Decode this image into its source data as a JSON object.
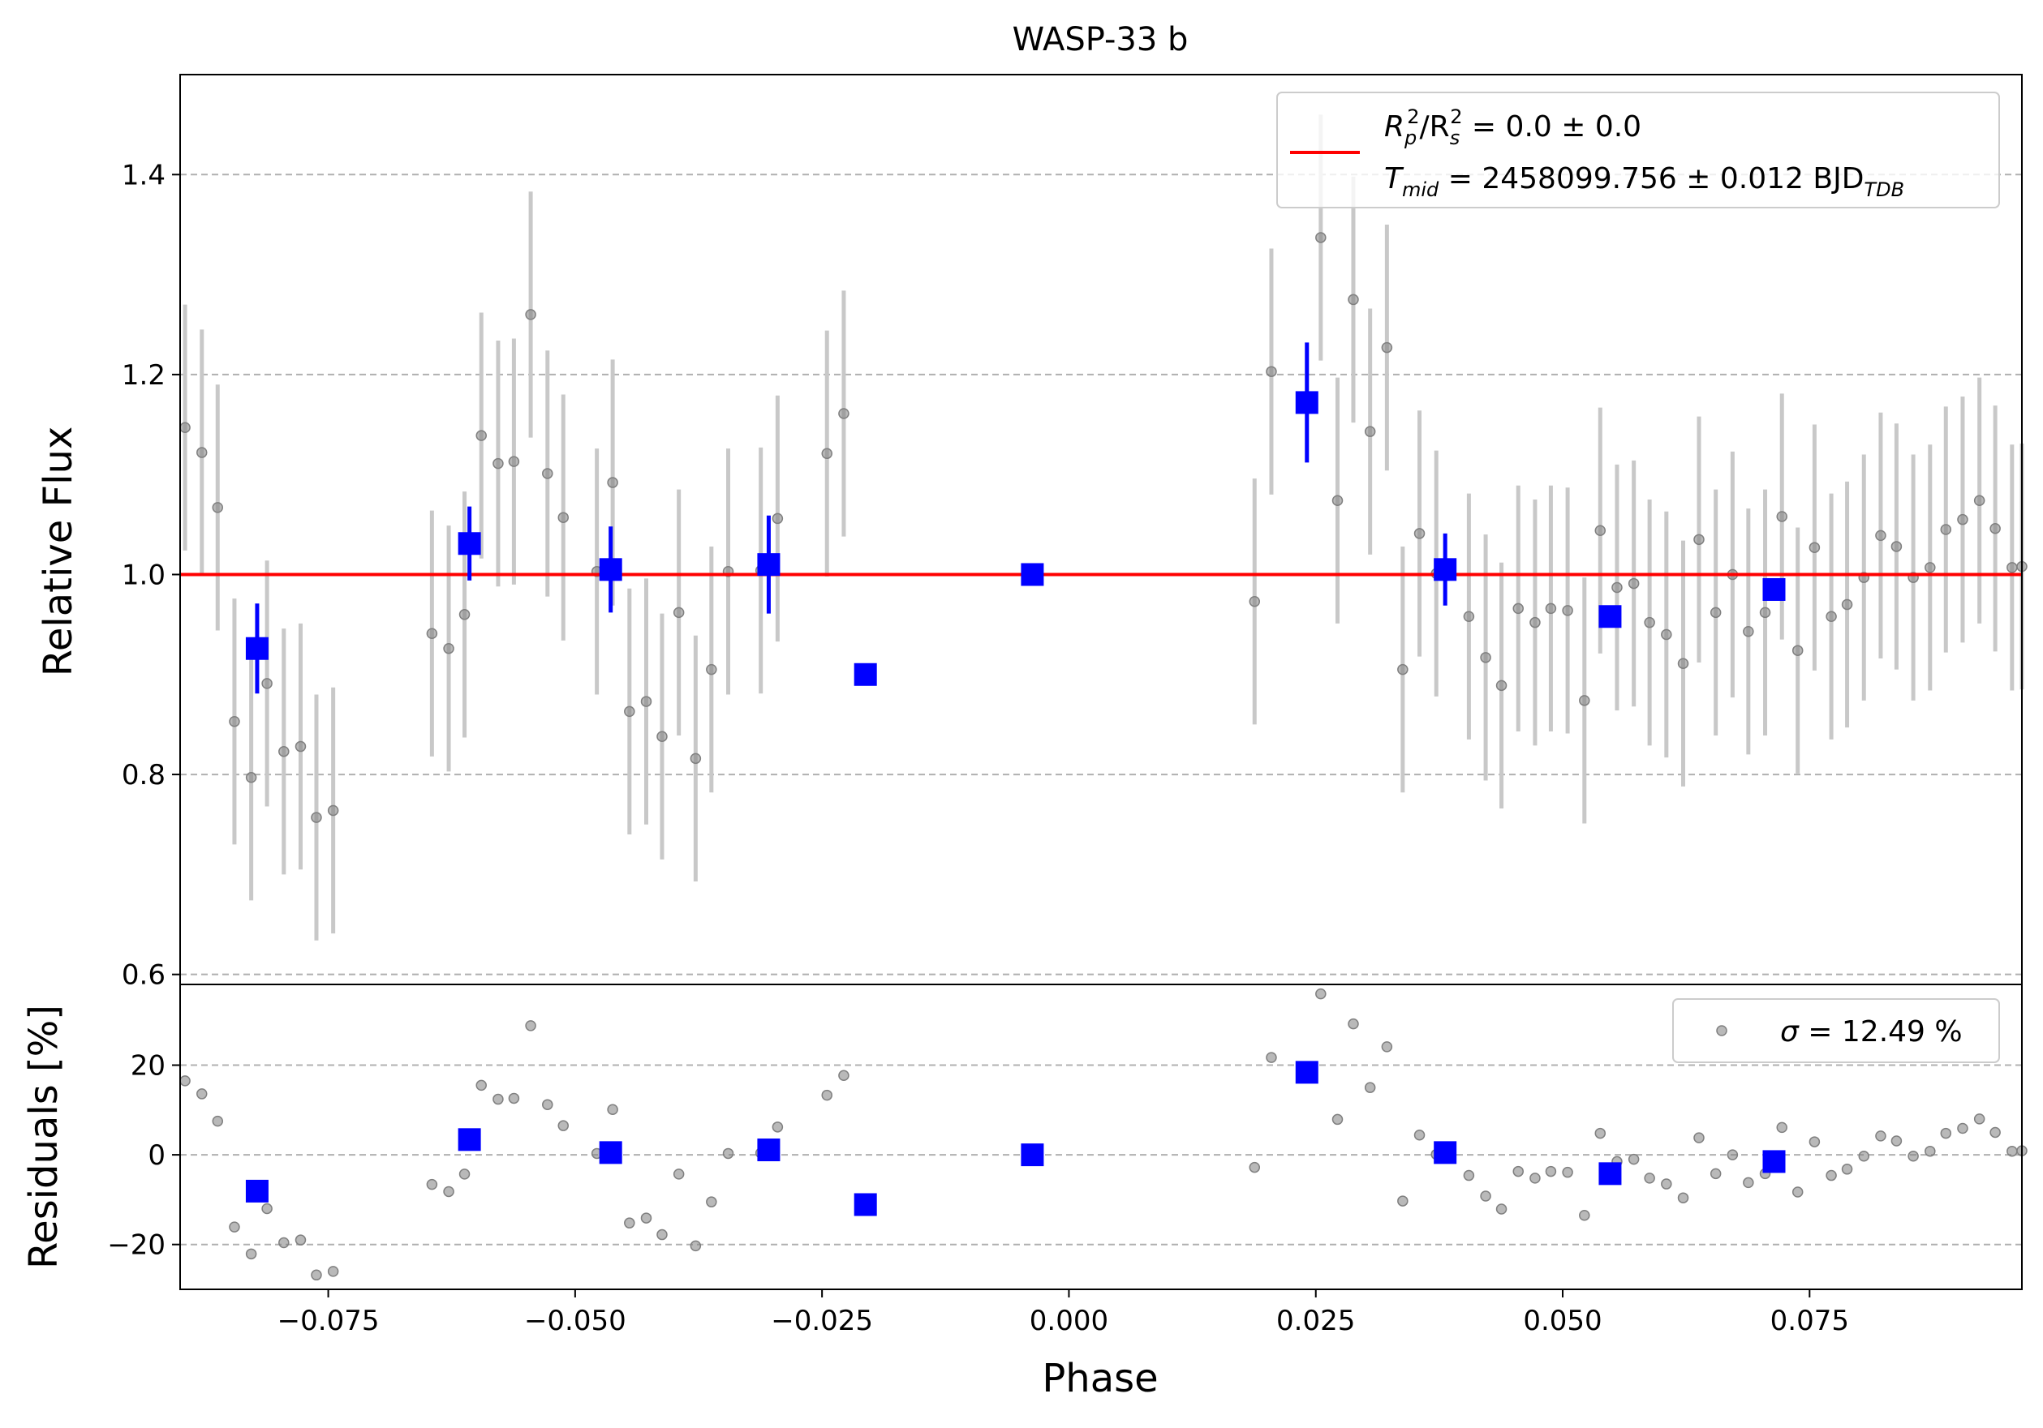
{
  "chart_data": [
    {
      "type": "scatter",
      "panel": "main",
      "title": "WASP-33 b",
      "xlabel": "",
      "ylabel": "Relative Flux",
      "xlim": [
        -0.09,
        0.0965
      ],
      "ylim": [
        0.59,
        1.5
      ],
      "yticks": [
        0.6,
        0.8,
        1.0,
        1.2,
        1.4
      ],
      "grid": "horizontal dashed",
      "legend_position": "top-right",
      "legend": {
        "model_label": "R_p^2/R_s^2 = 0.0 ± 0.0",
        "model_label_rp": "R",
        "model_label_p": "p",
        "model_label_sq1": "2",
        "model_label_rs": "/R",
        "model_label_s": "s",
        "model_label_sq2": "2",
        "model_label_value": " = 0.0 ± 0.0",
        "tmid_label": "T_mid = 2458099.756 ± 0.012 BJD_TDB",
        "tmid_T": "T",
        "tmid_sub": "mid",
        "tmid_value": " = 2458099.756 ± 0.012 BJD",
        "tmid_bjd_sub": "TDB"
      },
      "model": {
        "name": "model",
        "y": 1.0,
        "color": "#ff0000"
      },
      "colors": {
        "raw": "#808080",
        "raw_err": "#c8c8c8",
        "binned": "#0000ff",
        "model": "#ff0000",
        "grid": "#b0b0b0"
      },
      "series": [
        {
          "name": "raw",
          "x": [
            -0.0895,
            -0.0878,
            -0.0862,
            -0.0845,
            -0.0828,
            -0.0812,
            -0.0795,
            -0.0778,
            -0.0762,
            -0.0745,
            -0.0645,
            -0.0628,
            -0.0612,
            -0.0595,
            -0.0578,
            -0.0562,
            -0.0545,
            -0.0528,
            -0.0512,
            -0.0478,
            -0.0462,
            -0.0445,
            -0.0428,
            -0.0412,
            -0.0395,
            -0.0378,
            -0.0362,
            -0.0345,
            -0.0312,
            -0.0295,
            -0.0245,
            -0.0228,
            0.0188,
            0.0205,
            0.0255,
            0.0272,
            0.0288,
            0.0305,
            0.0322,
            0.0338,
            0.0355,
            0.0372,
            0.0405,
            0.0422,
            0.0438,
            0.0455,
            0.0472,
            0.0488,
            0.0505,
            0.0522,
            0.0538,
            0.0555,
            0.0572,
            0.0588,
            0.0605,
            0.0622,
            0.0638,
            0.0655,
            0.0672,
            0.0688,
            0.0705,
            0.0722,
            0.0738,
            0.0755,
            0.0772,
            0.0788,
            0.0805,
            0.0822,
            0.0838,
            0.0855,
            0.0872,
            0.0888,
            0.0905,
            0.0922,
            0.0938,
            0.0955,
            0.0965
          ],
          "y": [
            1.147,
            1.122,
            1.067,
            0.853,
            0.797,
            0.891,
            0.823,
            0.828,
            0.757,
            0.764,
            0.941,
            0.926,
            0.96,
            1.139,
            1.111,
            1.113,
            1.26,
            1.101,
            1.057,
            1.003,
            1.092,
            0.863,
            0.873,
            0.838,
            0.962,
            0.816,
            0.905,
            1.003,
            1.004,
            1.056,
            1.121,
            1.161,
            0.973,
            1.203,
            1.337,
            1.074,
            1.275,
            1.143,
            1.227,
            0.905,
            1.041,
            1.001,
            0.958,
            0.917,
            0.889,
            0.966,
            0.952,
            0.966,
            0.964,
            0.874,
            1.044,
            0.987,
            0.991,
            0.952,
            0.94,
            0.911,
            1.035,
            0.962,
            1.0,
            0.943,
            0.962,
            1.058,
            0.924,
            1.027,
            0.958,
            0.97,
            0.997,
            1.039,
            1.028,
            0.997,
            1.007,
            1.045,
            1.055,
            1.074,
            1.046,
            1.007,
            1.008
          ],
          "yerr": 0.123
        },
        {
          "name": "binned",
          "x": [
            -0.0822,
            -0.0607,
            -0.0464,
            -0.0304,
            -0.0206,
            -0.0037,
            0.0241,
            0.0381,
            0.0548,
            0.0714
          ],
          "y": [
            0.926,
            1.031,
            1.005,
            1.01,
            0.9,
            1.0,
            1.172,
            1.005,
            0.958,
            0.985
          ],
          "yerr": [
            0.045,
            0.037,
            0.043,
            0.049,
            0.0,
            0.0,
            0.06,
            0.036,
            0.008,
            0.005
          ]
        }
      ]
    },
    {
      "type": "scatter",
      "panel": "residuals",
      "xlabel": "Phase",
      "ylabel": "Residuals [%]",
      "xlim": [
        -0.09,
        0.0965
      ],
      "ylim": [
        -30,
        38
      ],
      "yticks": [
        -20,
        0,
        20
      ],
      "xticks": [
        -0.075,
        -0.05,
        -0.025,
        0.0,
        0.025,
        0.05,
        0.075
      ],
      "xtick_labels": [
        "−0.075",
        "−0.050",
        "−0.025",
        "0.000",
        "0.025",
        "0.050",
        "0.075"
      ],
      "ytick_labels": [
        "−20",
        "0",
        "20"
      ],
      "main_ytick_labels": [
        "0.6",
        "0.8",
        "1.0",
        "1.2",
        "1.4"
      ],
      "legend_position": "top-right",
      "legend": {
        "sigma_label": "σ = 12.49 %",
        "sigma_symbol": "σ",
        "sigma_value": " = 12.49 %"
      },
      "series": [
        {
          "name": "raw_residuals",
          "x": [
            -0.0895,
            -0.0878,
            -0.0862,
            -0.0845,
            -0.0828,
            -0.0812,
            -0.0795,
            -0.0778,
            -0.0762,
            -0.0745,
            -0.0645,
            -0.0628,
            -0.0612,
            -0.0595,
            -0.0578,
            -0.0562,
            -0.0545,
            -0.0528,
            -0.0512,
            -0.0478,
            -0.0462,
            -0.0445,
            -0.0428,
            -0.0412,
            -0.0395,
            -0.0378,
            -0.0362,
            -0.0345,
            -0.0312,
            -0.0295,
            -0.0245,
            -0.0228,
            0.0188,
            0.0205,
            0.0255,
            0.0272,
            0.0288,
            0.0305,
            0.0322,
            0.0338,
            0.0355,
            0.0372,
            0.0405,
            0.0422,
            0.0438,
            0.0455,
            0.0472,
            0.0488,
            0.0505,
            0.0522,
            0.0538,
            0.0555,
            0.0572,
            0.0588,
            0.0605,
            0.0622,
            0.0638,
            0.0655,
            0.0672,
            0.0688,
            0.0705,
            0.0722,
            0.0738,
            0.0755,
            0.0772,
            0.0788,
            0.0805,
            0.0822,
            0.0838,
            0.0855,
            0.0872,
            0.0888,
            0.0905,
            0.0922,
            0.0938,
            0.0955,
            0.0965
          ],
          "y": [
            16.5,
            13.6,
            7.5,
            -16.1,
            -22.1,
            -12,
            -19.6,
            -19,
            -26.8,
            -26,
            -6.6,
            -8.2,
            -4.3,
            15.5,
            12.4,
            12.6,
            28.8,
            11.2,
            6.5,
            0.3,
            10.1,
            -15.2,
            -14.1,
            -17.8,
            -4.3,
            -20.3,
            -10.5,
            0.3,
            0.4,
            6.2,
            13.3,
            17.7,
            -2.8,
            21.7,
            35.9,
            7.9,
            29.2,
            15,
            24.1,
            -10.3,
            4.4,
            0.1,
            -4.6,
            -9.2,
            -12.1,
            -3.7,
            -5.2,
            -3.7,
            -3.9,
            -13.5,
            4.8,
            -1.5,
            -1,
            -5.2,
            -6.5,
            -9.6,
            3.8,
            -4.2,
            0,
            -6.2,
            -4.2,
            6.1,
            -8.3,
            2.9,
            -4.6,
            -3.2,
            -0.3,
            4.2,
            3.1,
            -0.3,
            0.8,
            4.8,
            5.9,
            8,
            5,
            0.8,
            0.9
          ]
        },
        {
          "name": "binned_residuals",
          "x": [
            -0.0822,
            -0.0607,
            -0.0464,
            -0.0304,
            -0.0206,
            -0.0037,
            0.0241,
            0.0381,
            0.0548,
            0.0714
          ],
          "y": [
            -8.1,
            3.4,
            0.5,
            1.1,
            -11.1,
            0.0,
            18.4,
            0.5,
            -4.2,
            -1.5
          ]
        }
      ]
    }
  ]
}
